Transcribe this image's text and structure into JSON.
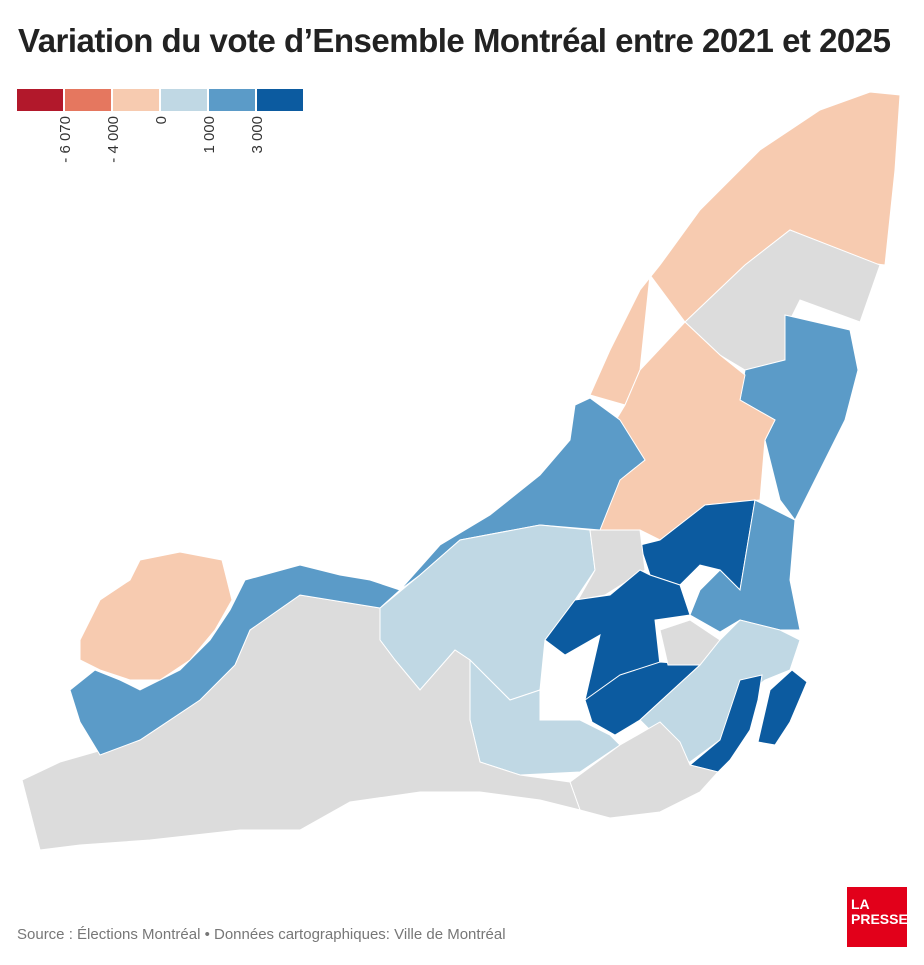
{
  "title": "Variation du vote d’Ensemble Montréal entre 2021 et 2025",
  "legend": {
    "colors": [
      "#b2182b",
      "#e5775f",
      "#f7cbb0",
      "#c0d8e4",
      "#5b9bc8",
      "#0c5ba0"
    ],
    "ticks": [
      "- 6 070",
      "- 4 000",
      "0",
      "1 000",
      "3 000"
    ]
  },
  "map": {
    "no_data_color": "#dcdcdc",
    "regions": [
      {
        "id": "ne-tip",
        "class": 2
      },
      {
        "id": "ne-grey",
        "class": null
      },
      {
        "id": "east-blue",
        "class": 4
      },
      {
        "id": "mid-peach",
        "class": 2
      },
      {
        "id": "north-darkblue",
        "class": 5
      },
      {
        "id": "mid-blue-strip",
        "class": 4
      },
      {
        "id": "nw-shore-blue",
        "class": 4
      },
      {
        "id": "central-lightblue",
        "class": 3
      },
      {
        "id": "central-grey",
        "class": null
      },
      {
        "id": "central-darkblue",
        "class": 5
      },
      {
        "id": "lower-darkblue",
        "class": 5
      },
      {
        "id": "small-grey",
        "class": null
      },
      {
        "id": "east-lightblue",
        "class": 3
      },
      {
        "id": "east-darkblue",
        "class": 5
      },
      {
        "id": "island-darkblue",
        "class": 5
      },
      {
        "id": "south-lightblue",
        "class": 3
      },
      {
        "id": "south-grey",
        "class": null
      },
      {
        "id": "west-grey",
        "class": null
      },
      {
        "id": "west-shore-blue",
        "class": 4
      },
      {
        "id": "ile-bizard",
        "class": 2
      }
    ]
  },
  "footer": {
    "source": "Source : Élections Montréal • Données cartographiques: Ville de Montréal",
    "logo_text": "LA PRESSE"
  }
}
